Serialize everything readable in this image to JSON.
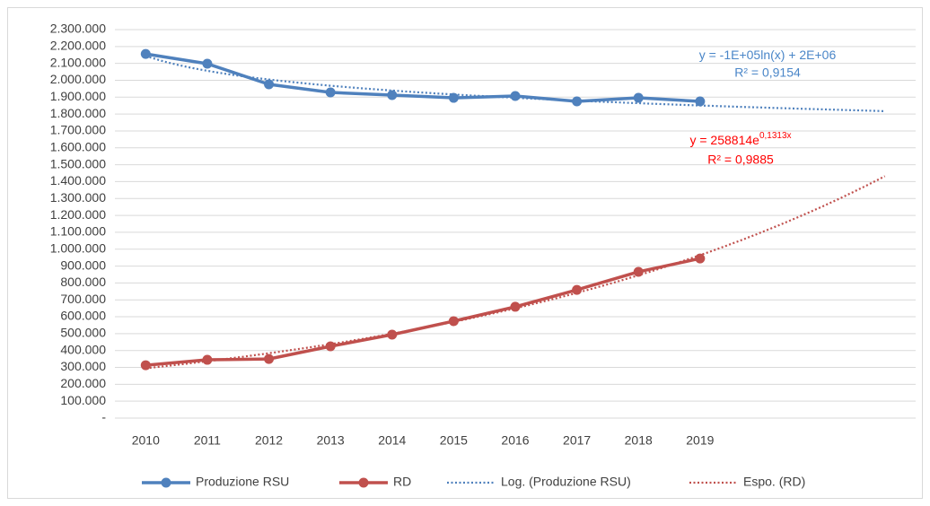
{
  "chart_data": {
    "type": "line",
    "categories": [
      "2010",
      "2011",
      "2012",
      "2013",
      "2014",
      "2015",
      "2016",
      "2017",
      "2018",
      "2019"
    ],
    "series": [
      {
        "name": "Produzione RSU",
        "color": "#4f81bd",
        "values": [
          2156000,
          2098000,
          1976000,
          1928000,
          1912000,
          1896000,
          1907000,
          1875000,
          1896000,
          1875000
        ]
      },
      {
        "name": "RD",
        "color": "#c0504d",
        "values": [
          313000,
          345000,
          350000,
          425000,
          494000,
          574000,
          659000,
          759000,
          866000,
          945000
        ]
      }
    ],
    "trendlines": [
      {
        "name": "Log. (Produzione RSU)",
        "type": "log",
        "series": 0,
        "color": "#4f81bd",
        "text_color": "#4a86c8",
        "equation": "y = -1E+05ln(x) + 2E+06",
        "r2": "R² = 0,9154"
      },
      {
        "name": "Espo. (RD)",
        "type": "exp",
        "series": 1,
        "color": "#c0504d",
        "text_color": "#ff0000",
        "equation": "y = 258814e",
        "equation_sup": "0,1313x",
        "r2": "R² = 0,9885"
      }
    ],
    "ylim": [
      0,
      2300000
    ],
    "yticks": [
      {
        "value": 0,
        "label": "-"
      },
      {
        "value": 100000,
        "label": "100.000"
      },
      {
        "value": 200000,
        "label": "200.000"
      },
      {
        "value": 300000,
        "label": "300.000"
      },
      {
        "value": 400000,
        "label": "400.000"
      },
      {
        "value": 500000,
        "label": "500.000"
      },
      {
        "value": 600000,
        "label": "600.000"
      },
      {
        "value": 700000,
        "label": "700.000"
      },
      {
        "value": 800000,
        "label": "800.000"
      },
      {
        "value": 900000,
        "label": "900.000"
      },
      {
        "value": 1000000,
        "label": "1.000.000"
      },
      {
        "value": 1100000,
        "label": "1.100.000"
      },
      {
        "value": 1200000,
        "label": "1.200.000"
      },
      {
        "value": 1300000,
        "label": "1.300.000"
      },
      {
        "value": 1400000,
        "label": "1.400.000"
      },
      {
        "value": 1500000,
        "label": "1.500.000"
      },
      {
        "value": 1600000,
        "label": "1.600.000"
      },
      {
        "value": 1700000,
        "label": "1.700.000"
      },
      {
        "value": 1800000,
        "label": "1.800.000"
      },
      {
        "value": 1900000,
        "label": "1.900.000"
      },
      {
        "value": 2000000,
        "label": "2.000.000"
      },
      {
        "value": 2100000,
        "label": "2.100.000"
      },
      {
        "value": 2200000,
        "label": "2.200.000"
      },
      {
        "value": 2300000,
        "label": "2.300.000"
      }
    ],
    "grid": true,
    "legend": "bottom"
  }
}
